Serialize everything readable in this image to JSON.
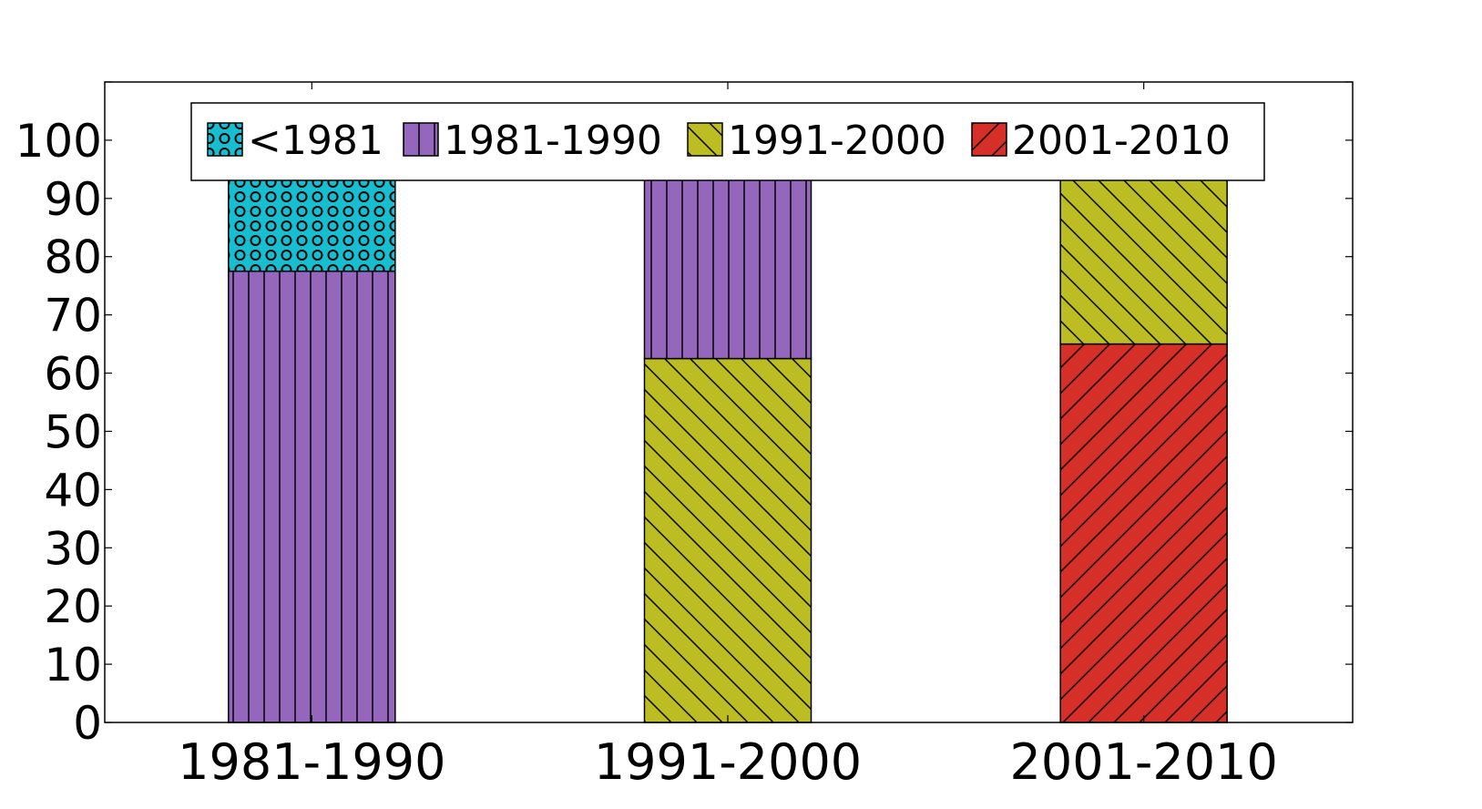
{
  "chart_data": {
    "type": "bar",
    "stacked": true,
    "categories": [
      "1981-1990",
      "1991-2000",
      "2001-2010"
    ],
    "series": [
      {
        "name": "2001-2010",
        "values": [
          0,
          0,
          65
        ],
        "color": "#d62f28",
        "pattern": "forward-diagonal"
      },
      {
        "name": "1991-2000",
        "values": [
          0,
          62.5,
          31
        ],
        "color": "#bcbd22",
        "pattern": "back-diagonal"
      },
      {
        "name": "1981-1990",
        "values": [
          77.5,
          35.5,
          3.5
        ],
        "color": "#9467bd",
        "pattern": "vertical"
      },
      {
        "name": "<1981",
        "values": [
          22.5,
          2,
          0.5
        ],
        "color": "#17becf",
        "pattern": "circles"
      }
    ],
    "legend_order": [
      "<1981",
      "1981-1990",
      "1991-2000",
      "2001-2010"
    ],
    "yticks": [
      0,
      10,
      20,
      30,
      40,
      50,
      60,
      70,
      80,
      90,
      100
    ],
    "ylim": [
      0,
      110
    ],
    "grid": false,
    "legend_position": "top-center"
  }
}
